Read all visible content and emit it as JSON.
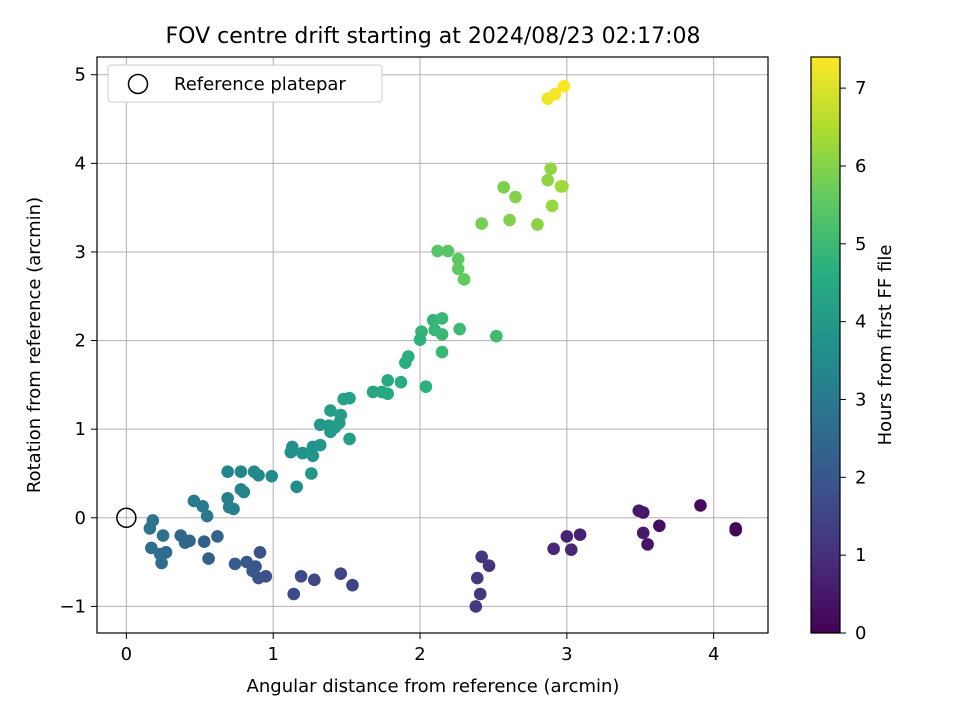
{
  "chart_data": {
    "type": "scatter",
    "title": "FOV centre drift starting at 2024/08/23 02:17:08",
    "xlabel": "Angular distance from reference (arcmin)",
    "ylabel": "Rotation from reference (arcmin)",
    "xlim": [
      -0.2,
      4.37
    ],
    "ylim": [
      -1.3,
      5.2
    ],
    "xticks": [
      0,
      1,
      2,
      3,
      4
    ],
    "yticks": [
      -1,
      0,
      1,
      2,
      3,
      4,
      5
    ],
    "xtick_labels": [
      "0",
      "1",
      "2",
      "3",
      "4"
    ],
    "ytick_labels": [
      "−1",
      "0",
      "1",
      "2",
      "3",
      "4",
      "5"
    ],
    "grid": true,
    "legend": {
      "position": "upper-left",
      "entries": [
        "Reference platepar"
      ]
    },
    "reference_point": {
      "x": 0,
      "y": 0,
      "marker": "open-circle"
    },
    "colorbar": {
      "label": "Hours from first FF file",
      "colormap": "viridis",
      "range": [
        0,
        7.4
      ],
      "ticks": [
        0,
        1,
        2,
        3,
        4,
        5,
        6,
        7
      ],
      "tick_labels": [
        "0",
        "1",
        "2",
        "3",
        "4",
        "5",
        "6",
        "7"
      ]
    },
    "points": [
      {
        "x": 4.15,
        "y": -0.12,
        "c": 0.05
      },
      {
        "x": 4.15,
        "y": -0.14,
        "c": 0.1
      },
      {
        "x": 3.91,
        "y": 0.14,
        "c": 0.2
      },
      {
        "x": 3.63,
        "y": -0.09,
        "c": 0.3
      },
      {
        "x": 3.55,
        "y": -0.3,
        "c": 0.4
      },
      {
        "x": 3.52,
        "y": 0.06,
        "c": 0.45
      },
      {
        "x": 3.49,
        "y": 0.08,
        "c": 0.5
      },
      {
        "x": 3.52,
        "y": -0.17,
        "c": 0.55
      },
      {
        "x": 3.09,
        "y": -0.19,
        "c": 0.7
      },
      {
        "x": 3.0,
        "y": -0.21,
        "c": 0.75
      },
      {
        "x": 3.03,
        "y": -0.36,
        "c": 0.8
      },
      {
        "x": 2.91,
        "y": -0.35,
        "c": 0.85
      },
      {
        "x": 2.47,
        "y": -0.54,
        "c": 1.05
      },
      {
        "x": 2.42,
        "y": -0.44,
        "c": 1.1
      },
      {
        "x": 2.39,
        "y": -0.68,
        "c": 1.15
      },
      {
        "x": 2.41,
        "y": -0.86,
        "c": 1.2
      },
      {
        "x": 2.38,
        "y": -1.0,
        "c": 1.25
      },
      {
        "x": 1.54,
        "y": -0.76,
        "c": 1.5
      },
      {
        "x": 1.46,
        "y": -0.63,
        "c": 1.55
      },
      {
        "x": 1.28,
        "y": -0.7,
        "c": 1.6
      },
      {
        "x": 1.19,
        "y": -0.66,
        "c": 1.65
      },
      {
        "x": 1.14,
        "y": -0.86,
        "c": 1.7
      },
      {
        "x": 0.95,
        "y": -0.66,
        "c": 1.8
      },
      {
        "x": 0.91,
        "y": -0.39,
        "c": 1.85
      },
      {
        "x": 0.9,
        "y": -0.68,
        "c": 1.9
      },
      {
        "x": 0.88,
        "y": -0.55,
        "c": 1.95
      },
      {
        "x": 0.86,
        "y": -0.6,
        "c": 2.0
      },
      {
        "x": 0.82,
        "y": -0.5,
        "c": 2.05
      },
      {
        "x": 0.74,
        "y": -0.52,
        "c": 2.1
      },
      {
        "x": 0.56,
        "y": -0.46,
        "c": 2.2
      },
      {
        "x": 0.53,
        "y": -0.27,
        "c": 2.25
      },
      {
        "x": 0.62,
        "y": -0.21,
        "c": 2.3
      },
      {
        "x": 0.43,
        "y": -0.26,
        "c": 2.4
      },
      {
        "x": 0.37,
        "y": -0.2,
        "c": 2.45
      },
      {
        "x": 0.4,
        "y": -0.28,
        "c": 2.5
      },
      {
        "x": 0.27,
        "y": -0.39,
        "c": 2.55
      },
      {
        "x": 0.24,
        "y": -0.51,
        "c": 2.6
      },
      {
        "x": 0.23,
        "y": -0.41,
        "c": 2.65
      },
      {
        "x": 0.17,
        "y": -0.34,
        "c": 2.7
      },
      {
        "x": 0.25,
        "y": -0.2,
        "c": 2.75
      },
      {
        "x": 0.16,
        "y": -0.12,
        "c": 2.8
      },
      {
        "x": 0.18,
        "y": -0.03,
        "c": 2.85
      },
      {
        "x": 0.55,
        "y": 0.02,
        "c": 2.95
      },
      {
        "x": 0.52,
        "y": 0.13,
        "c": 3.0
      },
      {
        "x": 0.46,
        "y": 0.19,
        "c": 3.05
      },
      {
        "x": 0.69,
        "y": 0.22,
        "c": 3.1
      },
      {
        "x": 0.7,
        "y": 0.12,
        "c": 3.15
      },
      {
        "x": 0.73,
        "y": 0.1,
        "c": 3.2
      },
      {
        "x": 0.78,
        "y": 0.32,
        "c": 3.25
      },
      {
        "x": 0.8,
        "y": 0.29,
        "c": 3.3
      },
      {
        "x": 0.69,
        "y": 0.52,
        "c": 3.35
      },
      {
        "x": 0.78,
        "y": 0.52,
        "c": 3.4
      },
      {
        "x": 0.87,
        "y": 0.52,
        "c": 3.45
      },
      {
        "x": 0.9,
        "y": 0.48,
        "c": 3.5
      },
      {
        "x": 0.99,
        "y": 0.47,
        "c": 3.55
      },
      {
        "x": 1.16,
        "y": 0.35,
        "c": 3.6
      },
      {
        "x": 1.13,
        "y": 0.8,
        "c": 3.65
      },
      {
        "x": 1.12,
        "y": 0.74,
        "c": 3.7
      },
      {
        "x": 1.2,
        "y": 0.73,
        "c": 3.75
      },
      {
        "x": 1.27,
        "y": 0.8,
        "c": 3.8
      },
      {
        "x": 1.27,
        "y": 0.7,
        "c": 3.82
      },
      {
        "x": 1.32,
        "y": 0.82,
        "c": 3.85
      },
      {
        "x": 1.26,
        "y": 0.5,
        "c": 3.88
      },
      {
        "x": 1.32,
        "y": 1.05,
        "c": 3.9
      },
      {
        "x": 1.39,
        "y": 0.97,
        "c": 3.95
      },
      {
        "x": 1.38,
        "y": 1.04,
        "c": 4.0
      },
      {
        "x": 1.42,
        "y": 1.02,
        "c": 4.02
      },
      {
        "x": 1.45,
        "y": 1.07,
        "c": 4.05
      },
      {
        "x": 1.39,
        "y": 1.21,
        "c": 4.1
      },
      {
        "x": 1.46,
        "y": 1.16,
        "c": 4.12
      },
      {
        "x": 1.52,
        "y": 0.89,
        "c": 4.15
      },
      {
        "x": 1.48,
        "y": 1.34,
        "c": 4.2
      },
      {
        "x": 1.52,
        "y": 1.35,
        "c": 4.25
      },
      {
        "x": 1.68,
        "y": 1.42,
        "c": 4.35
      },
      {
        "x": 1.74,
        "y": 1.42,
        "c": 4.4
      },
      {
        "x": 1.78,
        "y": 1.4,
        "c": 4.45
      },
      {
        "x": 1.78,
        "y": 1.55,
        "c": 4.5
      },
      {
        "x": 1.87,
        "y": 1.53,
        "c": 4.55
      },
      {
        "x": 1.9,
        "y": 1.75,
        "c": 4.6
      },
      {
        "x": 1.92,
        "y": 1.82,
        "c": 4.65
      },
      {
        "x": 2.04,
        "y": 1.48,
        "c": 4.7
      },
      {
        "x": 2.0,
        "y": 2.01,
        "c": 4.75
      },
      {
        "x": 2.01,
        "y": 2.1,
        "c": 4.8
      },
      {
        "x": 2.09,
        "y": 2.23,
        "c": 4.85
      },
      {
        "x": 2.1,
        "y": 2.12,
        "c": 4.9
      },
      {
        "x": 2.15,
        "y": 2.25,
        "c": 4.92
      },
      {
        "x": 2.15,
        "y": 2.07,
        "c": 4.95
      },
      {
        "x": 2.15,
        "y": 1.87,
        "c": 4.97
      },
      {
        "x": 2.27,
        "y": 2.13,
        "c": 5.0
      },
      {
        "x": 2.52,
        "y": 2.05,
        "c": 5.05
      },
      {
        "x": 2.12,
        "y": 3.01,
        "c": 5.4
      },
      {
        "x": 2.19,
        "y": 3.01,
        "c": 5.45
      },
      {
        "x": 2.26,
        "y": 2.92,
        "c": 5.5
      },
      {
        "x": 2.26,
        "y": 2.81,
        "c": 5.55
      },
      {
        "x": 2.3,
        "y": 2.69,
        "c": 5.6
      },
      {
        "x": 2.42,
        "y": 3.32,
        "c": 5.8
      },
      {
        "x": 2.57,
        "y": 3.73,
        "c": 5.9
      },
      {
        "x": 2.61,
        "y": 3.36,
        "c": 5.95
      },
      {
        "x": 2.65,
        "y": 3.62,
        "c": 6.0
      },
      {
        "x": 2.8,
        "y": 3.31,
        "c": 6.05
      },
      {
        "x": 2.87,
        "y": 3.81,
        "c": 6.1
      },
      {
        "x": 2.89,
        "y": 3.94,
        "c": 6.15
      },
      {
        "x": 2.9,
        "y": 3.52,
        "c": 6.2
      },
      {
        "x": 2.97,
        "y": 3.74,
        "c": 6.25
      },
      {
        "x": 2.96,
        "y": 3.74,
        "c": 6.3
      },
      {
        "x": 2.87,
        "y": 4.73,
        "c": 7.2
      },
      {
        "x": 2.92,
        "y": 4.78,
        "c": 7.3
      },
      {
        "x": 2.98,
        "y": 4.87,
        "c": 7.4
      }
    ]
  }
}
